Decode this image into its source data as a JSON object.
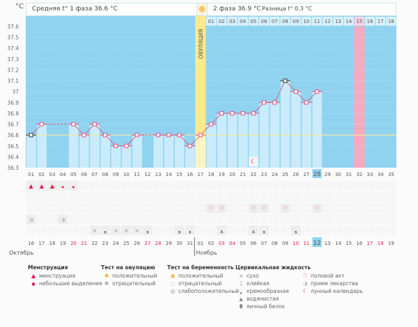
{
  "header": {
    "unit": "°C",
    "phase1": "Средняя t° 1 фаза 36.6 °C",
    "phase2": "2 фаза 36.9 °C",
    "diff": "Разница t° 0.3 °C"
  },
  "chart_data": {
    "type": "line",
    "title": "",
    "ylabel": "°C",
    "ylim": [
      36.3,
      37.6
    ],
    "yticks": [
      "37.6",
      "37.5",
      "37.4",
      "37.3",
      "37.2",
      "37.1",
      "37",
      "36.9",
      "36.8",
      "36.7",
      "36.6",
      "36.5",
      "36.4",
      "36.3"
    ],
    "cycle_days": [
      "01",
      "02",
      "03",
      "04",
      "05",
      "06",
      "07",
      "08",
      "09",
      "10",
      "11",
      "12",
      "13",
      "14",
      "15",
      "16",
      "17",
      "18",
      "19",
      "20",
      "21",
      "22",
      "23",
      "24",
      "25",
      "26",
      "27",
      "28",
      "29",
      "30",
      "31",
      "32",
      "33",
      "34",
      "35"
    ],
    "temperatures": [
      36.6,
      36.7,
      null,
      null,
      36.7,
      36.6,
      36.7,
      36.6,
      36.5,
      36.5,
      36.6,
      null,
      36.6,
      36.6,
      36.6,
      36.5,
      36.6,
      36.7,
      36.8,
      36.8,
      36.8,
      36.8,
      36.9,
      36.9,
      37.1,
      37.0,
      36.9,
      37.0,
      null,
      null,
      null,
      null,
      null,
      null,
      null
    ],
    "coverline": 36.6,
    "ovulation_day": 17,
    "ovulation_label": "ОВУЛЯЦИЯ",
    "today_day": 28,
    "phase2_days": [
      "01",
      "02",
      "03",
      "04",
      "05",
      "06",
      "07",
      "08",
      "09",
      "10",
      "11",
      "12",
      "13",
      "14",
      "15",
      "16",
      "17",
      "18"
    ],
    "expected_period_day": 32,
    "dates": [
      "16",
      "17",
      "18",
      "19",
      "20",
      "21",
      "22",
      "23",
      "24",
      "25",
      "26",
      "27",
      "28",
      "29",
      "30",
      "31",
      "01",
      "02",
      "03",
      "04",
      "05",
      "06",
      "07",
      "08",
      "09",
      "10",
      "11",
      "12",
      "13",
      "14",
      "15",
      "16",
      "17",
      "18",
      "19"
    ],
    "weekend_dates_idx": [
      4,
      5,
      11,
      12,
      18,
      19,
      25,
      26,
      32,
      33
    ],
    "months": [
      "Октябрь",
      "Ноябрь"
    ]
  },
  "events": {
    "menstruation": {
      "1": "heavy",
      "2": "heavy",
      "3": "heavy",
      "4": "light",
      "5": "light"
    },
    "sex": [
      18,
      19,
      22,
      23,
      25,
      28
    ],
    "moon": [
      22
    ],
    "medication": [
      1,
      4
    ],
    "cervical": {
      "7": "dry",
      "8": "creamy",
      "9": "dry",
      "10": "dry",
      "11": "dry",
      "12": "creamy",
      "15": "creamy",
      "16": "creamy",
      "19": "watery",
      "22": "watery",
      "23": "creamy",
      "26": "creamy"
    }
  },
  "legend": {
    "menstruation": {
      "title": "Менструация",
      "items": [
        "менструация",
        "небольшие выделения"
      ]
    },
    "ovulation_test": {
      "title": "Тест на овуляцию",
      "items": [
        "положительный",
        "отрицательный"
      ]
    },
    "pregnancy_test": {
      "title": "Тест на беременность",
      "items": [
        "положительный",
        "отрицательный",
        "слабоположительный"
      ]
    },
    "cervical": {
      "title": "Цервикальная жидкость",
      "items": [
        "сухо",
        "клейкая",
        "кремообразная",
        "водянистая",
        "яичный белок"
      ]
    },
    "other": {
      "items": [
        "половой акт",
        "прием лекарства",
        "лунный календарь"
      ]
    }
  },
  "colors": {
    "sky": "#8fd3f1",
    "bar": "#c9ebfa",
    "pink": "#f7a9bf",
    "ovulation": "#fce98c",
    "line": "#e3517f",
    "coverline": "#f0eaa0",
    "weekend": "#e8194f",
    "today": "#8fd3f1"
  }
}
